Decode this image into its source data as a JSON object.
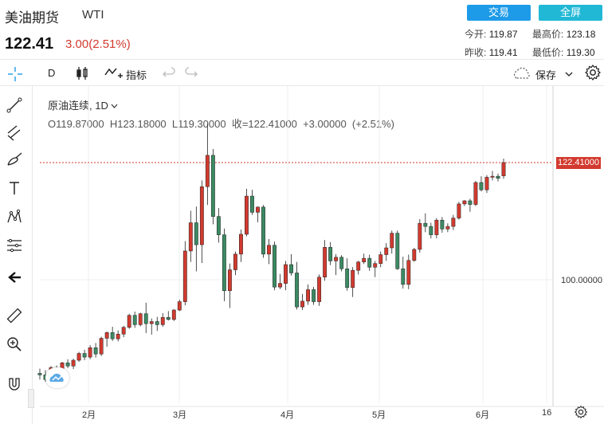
{
  "header": {
    "title": "美油期货",
    "code": "WTI",
    "price": "122.41",
    "change": "3.00(2.51%)",
    "trade_button": "交易",
    "fullscreen_button": "全屏",
    "stats": {
      "open_label": "今开:",
      "open": "119.87",
      "high_label": "最高价:",
      "high": "123.18",
      "prev_close_label": "昨收:",
      "prev_close": "119.41",
      "low_label": "最低价:",
      "low": "119.30"
    }
  },
  "toolbar": {
    "interval": "D",
    "indicators_label": "指标",
    "save_label": "保存"
  },
  "legend": {
    "symbol": "原油连续, 1D",
    "ohlc": "O119.87000  H123.18000  L119.30000  收=122.41000  +3.00000  (+2.51%)"
  },
  "axis": {
    "last_price_label": "122.41000",
    "y_tick": "100.00000",
    "x_ticks": [
      "2月",
      "3月",
      "4月",
      "5月",
      "6月",
      "16"
    ]
  },
  "colors": {
    "up": "#d23a2f",
    "down": "#3c8a63",
    "accent": "#1e9be8"
  },
  "chart_data": {
    "type": "candlestick",
    "series_ohlc": [
      [
        82.1,
        83.0,
        80.9,
        81.8
      ],
      [
        81.8,
        82.7,
        80.5,
        80.9
      ],
      [
        80.9,
        83.5,
        80.6,
        83.2
      ],
      [
        83.2,
        83.6,
        81.2,
        81.7
      ],
      [
        81.7,
        84.3,
        81.5,
        84.1
      ],
      [
        84.1,
        84.8,
        83.1,
        83.5
      ],
      [
        83.5,
        84.9,
        82.9,
        84.6
      ],
      [
        84.6,
        86.2,
        84.3,
        85.9
      ],
      [
        85.9,
        86.6,
        84.6,
        85.2
      ],
      [
        85.2,
        87.5,
        84.8,
        87.0
      ],
      [
        87.0,
        87.9,
        85.1,
        85.8
      ],
      [
        85.8,
        89.1,
        85.4,
        88.8
      ],
      [
        88.8,
        90.1,
        87.2,
        89.9
      ],
      [
        89.9,
        91.0,
        88.3,
        88.7
      ],
      [
        88.7,
        90.3,
        88.2,
        89.6
      ],
      [
        89.6,
        91.2,
        89.0,
        90.9
      ],
      [
        90.9,
        93.5,
        90.6,
        93.2
      ],
      [
        93.2,
        93.9,
        90.8,
        91.4
      ],
      [
        91.4,
        93.7,
        91.1,
        93.5
      ],
      [
        93.5,
        95.6,
        89.8,
        91.6
      ],
      [
        91.6,
        92.6,
        89.5,
        92.0
      ],
      [
        92.0,
        92.9,
        90.2,
        91.4
      ],
      [
        91.4,
        93.6,
        91.0,
        92.8
      ],
      [
        92.8,
        94.0,
        92.2,
        92.4
      ],
      [
        92.4,
        94.4,
        92.1,
        94.2
      ],
      [
        94.2,
        96.2,
        94.0,
        95.8
      ],
      [
        95.8,
        107.4,
        95.1,
        105.5
      ],
      [
        105.5,
        113.2,
        103.4,
        110.9
      ],
      [
        110.9,
        114.0,
        101.6,
        106.7
      ],
      [
        106.7,
        119.0,
        103.2,
        117.8
      ],
      [
        117.8,
        129.8,
        114.3,
        123.8
      ],
      [
        123.8,
        125.0,
        110.6,
        112.1
      ],
      [
        112.1,
        113.7,
        107.1,
        108.6
      ],
      [
        108.6,
        109.8,
        95.9,
        97.9
      ],
      [
        97.9,
        103.1,
        94.6,
        101.9
      ],
      [
        101.9,
        105.4,
        100.9,
        104.9
      ],
      [
        104.9,
        109.6,
        103.4,
        108.7
      ],
      [
        108.7,
        117.4,
        108.3,
        116.0
      ],
      [
        116.0,
        117.2,
        112.4,
        112.9
      ],
      [
        112.9,
        114.0,
        111.0,
        113.9
      ],
      [
        113.9,
        114.3,
        104.2,
        104.9
      ],
      [
        104.9,
        107.8,
        103.0,
        106.6
      ],
      [
        106.6,
        107.3,
        98.0,
        98.6
      ],
      [
        98.6,
        101.1,
        98.2,
        99.3
      ],
      [
        99.3,
        103.6,
        98.0,
        102.9
      ],
      [
        102.9,
        104.9,
        100.8,
        101.3
      ],
      [
        101.3,
        103.4,
        94.3,
        94.8
      ],
      [
        94.8,
        97.3,
        94.2,
        95.9
      ],
      [
        95.9,
        99.1,
        95.2,
        98.1
      ],
      [
        98.1,
        98.6,
        95.2,
        95.8
      ],
      [
        95.8,
        101.0,
        95.0,
        100.5
      ],
      [
        100.5,
        107.6,
        99.8,
        106.2
      ],
      [
        106.2,
        107.2,
        102.8,
        103.6
      ],
      [
        103.6,
        104.9,
        100.9,
        104.3
      ],
      [
        104.3,
        104.7,
        101.6,
        102.1
      ],
      [
        102.1,
        104.1,
        97.9,
        98.5
      ],
      [
        98.5,
        102.4,
        96.7,
        101.8
      ],
      [
        101.8,
        103.6,
        101.0,
        103.4
      ],
      [
        103.4,
        105.0,
        103.0,
        104.1
      ],
      [
        104.1,
        104.8,
        101.7,
        102.4
      ],
      [
        102.4,
        103.6,
        100.5,
        103.1
      ],
      [
        103.1,
        105.4,
        102.4,
        104.8
      ],
      [
        104.8,
        107.0,
        103.6,
        106.1
      ],
      [
        106.1,
        109.4,
        105.0,
        108.9
      ],
      [
        108.9,
        109.4,
        101.9,
        102.1
      ],
      [
        102.1,
        104.4,
        98.3,
        99.1
      ],
      [
        99.1,
        104.8,
        98.2,
        103.7
      ],
      [
        103.7,
        106.1,
        103.4,
        105.8
      ],
      [
        105.8,
        111.6,
        105.2,
        110.8
      ],
      [
        110.8,
        112.7,
        109.1,
        110.2
      ],
      [
        110.2,
        110.9,
        107.9,
        108.6
      ],
      [
        108.6,
        111.8,
        107.9,
        111.4
      ],
      [
        111.4,
        112.0,
        109.0,
        109.7
      ],
      [
        109.7,
        110.8,
        109.1,
        110.2
      ],
      [
        110.2,
        112.4,
        109.5,
        111.8
      ],
      [
        111.8,
        114.9,
        111.5,
        114.5
      ],
      [
        114.5,
        115.2,
        114.1,
        115.1
      ],
      [
        115.1,
        115.5,
        113.0,
        114.4
      ],
      [
        114.4,
        118.9,
        114.1,
        118.6
      ],
      [
        118.6,
        119.8,
        116.9,
        117.2
      ],
      [
        117.2,
        120.0,
        116.6,
        119.6
      ],
      [
        119.6,
        120.8,
        119.0,
        119.8
      ],
      [
        119.8,
        120.3,
        118.8,
        119.4
      ],
      [
        119.87,
        123.18,
        119.3,
        122.41
      ]
    ]
  }
}
